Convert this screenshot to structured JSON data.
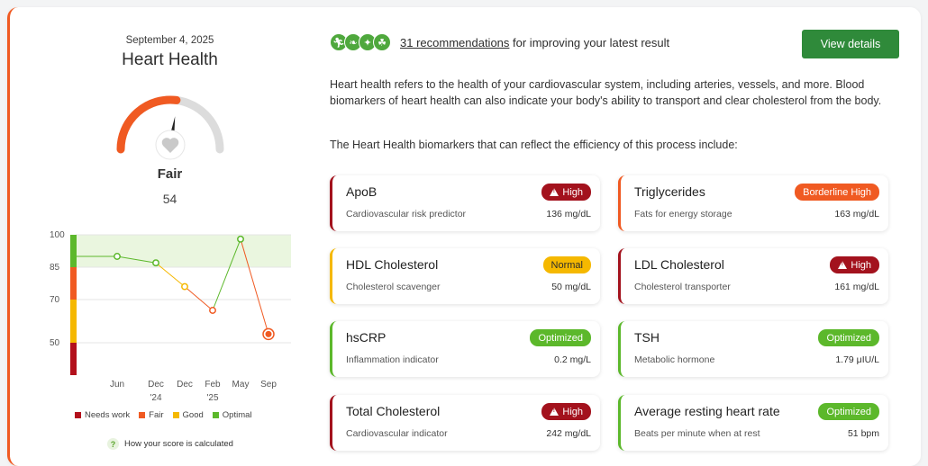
{
  "summary": {
    "date": "September 4, 2025",
    "title": "Heart Health",
    "rating": "Fair",
    "score": "54",
    "score_value": 54,
    "heart_icon": "heart-icon"
  },
  "trend": {
    "y_ticks": [
      "100",
      "85",
      "70",
      "50"
    ],
    "x_labels": [
      {
        "l1": "Jun",
        "l2": ""
      },
      {
        "l1": "Dec",
        "l2": "'24"
      },
      {
        "l1": "Dec",
        "l2": ""
      },
      {
        "l1": "Feb",
        "l2": "'25"
      },
      {
        "l1": "May",
        "l2": ""
      },
      {
        "l1": "Sep",
        "l2": ""
      }
    ],
    "points": [
      90,
      87,
      76,
      65,
      98,
      54
    ],
    "legend": [
      {
        "label": "Needs work",
        "color": "#b3101c"
      },
      {
        "label": "Fair",
        "color": "#f05a22"
      },
      {
        "label": "Good",
        "color": "#f5b800"
      },
      {
        "label": "Optimal",
        "color": "#5cb82b"
      }
    ],
    "howto": "How your score is calculated",
    "howto_icon": "?"
  },
  "recommendations": {
    "count_link": "31 recommendations",
    "suffix": " for improving your latest result",
    "icons": [
      "exercise-icon",
      "nutrition-icon",
      "supplement-icon",
      "lifestyle-icon"
    ],
    "button": "View details"
  },
  "description": "Heart health refers to the health of your cardiovascular system, including arteries, vessels, and more. Blood biomarkers of heart health can also indicate your body's ability to transport and clear cholesterol from the body.",
  "description2": "The Heart Health biomarkers that can reflect the efficiency of this process include:",
  "biomarkers": [
    {
      "name": "ApoB",
      "sub": "Cardiovascular risk predictor",
      "value": "136 mg/dL",
      "badge": "High",
      "status": "high"
    },
    {
      "name": "Triglycerides",
      "sub": "Fats for energy storage",
      "value": "163 mg/dL",
      "badge": "Borderline High",
      "status": "borderline"
    },
    {
      "name": "HDL Cholesterol",
      "sub": "Cholesterol scavenger",
      "value": "50 mg/dL",
      "badge": "Normal",
      "status": "normal"
    },
    {
      "name": "LDL Cholesterol",
      "sub": "Cholesterol transporter",
      "value": "161 mg/dL",
      "badge": "High",
      "status": "high"
    },
    {
      "name": "hsCRP",
      "sub": "Inflammation indicator",
      "value": "0.2 mg/L",
      "badge": "Optimized",
      "status": "optimized"
    },
    {
      "name": "TSH",
      "sub": "Metabolic hormone",
      "value": "1.79 μIU/L",
      "badge": "Optimized",
      "status": "optimized"
    },
    {
      "name": "Total Cholesterol",
      "sub": "Cardiovascular indicator",
      "value": "242 mg/dL",
      "badge": "High",
      "status": "high"
    },
    {
      "name": "Average resting heart rate",
      "sub": "Beats per minute when at rest",
      "value": "51 bpm",
      "badge": "Optimized",
      "status": "optimized"
    }
  ],
  "colors": {
    "high": "#a3121d",
    "borderline": "#f05a22",
    "normal": "#f5b800",
    "optimized": "#5cb82b",
    "button": "#2f8a3a"
  }
}
